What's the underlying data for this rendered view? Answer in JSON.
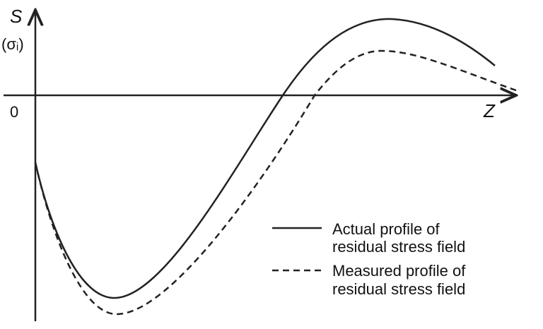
{
  "axes": {
    "y_label": "S",
    "y_sublabel": "(σᵢ)",
    "origin": "0",
    "x_label": "Z"
  },
  "legend": [
    {
      "lines": [
        "Actual profile of",
        "residual stress field"
      ]
    },
    {
      "lines": [
        "Measured profile of",
        "residual stress field"
      ]
    }
  ]
}
